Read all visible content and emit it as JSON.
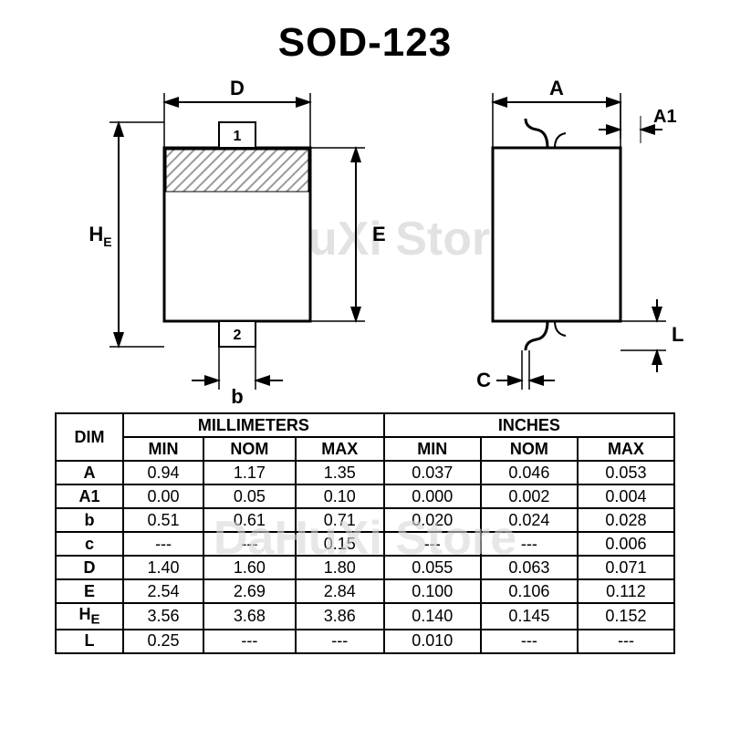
{
  "title": "SOD-123",
  "watermark": "DaHuXi Store",
  "diagram": {
    "labels": {
      "D": "D",
      "HE": "H",
      "HEsub": "E",
      "E": "E",
      "b": "b",
      "pin1": "1",
      "pin2": "2",
      "A": "A",
      "A1": "A1",
      "C": "C",
      "L": "L"
    },
    "stroke": "#000000",
    "hatch": "#9a9a9a"
  },
  "table": {
    "dim_header": "DIM",
    "group_mm": "MILLIMETERS",
    "group_in": "INCHES",
    "cols": [
      "MIN",
      "NOM",
      "MAX",
      "MIN",
      "NOM",
      "MAX"
    ],
    "rows": [
      {
        "dim": "A",
        "mm": [
          "0.94",
          "1.17",
          "1.35"
        ],
        "in": [
          "0.037",
          "0.046",
          "0.053"
        ]
      },
      {
        "dim": "A1",
        "mm": [
          "0.00",
          "0.05",
          "0.10"
        ],
        "in": [
          "0.000",
          "0.002",
          "0.004"
        ]
      },
      {
        "dim": "b",
        "mm": [
          "0.51",
          "0.61",
          "0.71"
        ],
        "in": [
          "0.020",
          "0.024",
          "0.028"
        ]
      },
      {
        "dim": "c",
        "mm": [
          "---",
          "---",
          "0.15"
        ],
        "in": [
          "---",
          "---",
          "0.006"
        ]
      },
      {
        "dim": "D",
        "mm": [
          "1.40",
          "1.60",
          "1.80"
        ],
        "in": [
          "0.055",
          "0.063",
          "0.071"
        ]
      },
      {
        "dim": "E",
        "mm": [
          "2.54",
          "2.69",
          "2.84"
        ],
        "in": [
          "0.100",
          "0.106",
          "0.112"
        ]
      },
      {
        "dim": "H",
        "sub": "E",
        "mm": [
          "3.56",
          "3.68",
          "3.86"
        ],
        "in": [
          "0.140",
          "0.145",
          "0.152"
        ]
      },
      {
        "dim": "L",
        "mm": [
          "0.25",
          "---",
          "---"
        ],
        "in": [
          "0.010",
          "---",
          "---"
        ]
      }
    ]
  }
}
